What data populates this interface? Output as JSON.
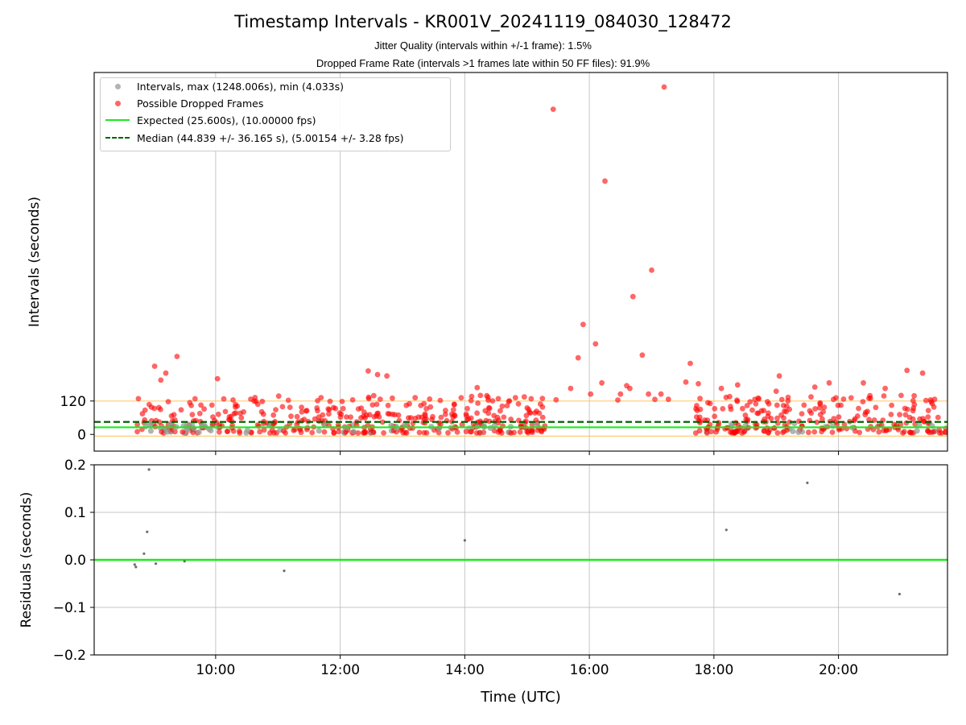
{
  "chart_data": [
    {
      "type": "scatter",
      "title": "Timestamp Intervals - KR001V_20241119_084030_128472",
      "subtitle_1": "Jitter Quality (intervals within +/-1 frame): 1.5%",
      "subtitle_2": "Dropped Frame Rate (intervals >1 frames late within 50 FF files): 91.9%",
      "ylabel": "Intervals (seconds)",
      "xlabel": "",
      "xlim": [
        8.05,
        21.75
      ],
      "ylim": [
        -60,
        1300
      ],
      "ytick_labels": [
        "0",
        "120"
      ],
      "xtick_labels": [
        "10:00",
        "12:00",
        "14:00",
        "16:00",
        "18:00",
        "20:00"
      ],
      "grid": "vertical",
      "legend_position": "upper-left",
      "legend": [
        {
          "label": "Intervals, max (1248.006s), min (4.033s)",
          "color": "#999999",
          "kind": "dot"
        },
        {
          "label": "Possible Dropped Frames",
          "color": "#ff0000",
          "kind": "dot"
        },
        {
          "label": "Expected (25.600s), (10.00000 fps)",
          "color": "#1aeb1a",
          "kind": "line"
        },
        {
          "label": "Median (44.839 +/- 36.165 s), (5.00154 +/- 3.28 fps)",
          "color": "#006400",
          "kind": "dashed"
        }
      ],
      "reference_lines": {
        "expected": 25.6,
        "median": 44.839,
        "band_upper": 120,
        "band_lower": -6
      },
      "outliers": [
        {
          "x": 9.02,
          "y": 245
        },
        {
          "x": 9.12,
          "y": 195
        },
        {
          "x": 9.2,
          "y": 220
        },
        {
          "x": 9.38,
          "y": 280
        },
        {
          "x": 10.03,
          "y": 200
        },
        {
          "x": 12.45,
          "y": 228
        },
        {
          "x": 12.6,
          "y": 215
        },
        {
          "x": 12.75,
          "y": 210
        },
        {
          "x": 14.2,
          "y": 168
        },
        {
          "x": 15.42,
          "y": 1168
        },
        {
          "x": 15.7,
          "y": 165
        },
        {
          "x": 15.82,
          "y": 275
        },
        {
          "x": 15.9,
          "y": 395
        },
        {
          "x": 16.02,
          "y": 145
        },
        {
          "x": 16.1,
          "y": 325
        },
        {
          "x": 16.2,
          "y": 185
        },
        {
          "x": 16.25,
          "y": 910
        },
        {
          "x": 16.5,
          "y": 145
        },
        {
          "x": 16.6,
          "y": 175
        },
        {
          "x": 16.65,
          "y": 165
        },
        {
          "x": 16.7,
          "y": 495
        },
        {
          "x": 16.85,
          "y": 285
        },
        {
          "x": 16.95,
          "y": 145
        },
        {
          "x": 17.0,
          "y": 590
        },
        {
          "x": 17.15,
          "y": 145
        },
        {
          "x": 17.2,
          "y": 1248
        },
        {
          "x": 17.55,
          "y": 188
        },
        {
          "x": 17.62,
          "y": 255
        },
        {
          "x": 17.75,
          "y": 182
        },
        {
          "x": 18.12,
          "y": 165
        },
        {
          "x": 18.38,
          "y": 178
        },
        {
          "x": 19.0,
          "y": 155
        },
        {
          "x": 19.05,
          "y": 210
        },
        {
          "x": 19.62,
          "y": 170
        },
        {
          "x": 19.85,
          "y": 185
        },
        {
          "x": 20.4,
          "y": 185
        },
        {
          "x": 20.75,
          "y": 165
        },
        {
          "x": 21.1,
          "y": 230
        },
        {
          "x": 21.35,
          "y": 220
        }
      ],
      "clusters": [
        {
          "x0": 8.7,
          "x1": 10.05,
          "y_lo": 5,
          "y_hi": 130,
          "count": 90,
          "gray_fraction": 0.35
        },
        {
          "x0": 10.05,
          "x1": 12.05,
          "y_lo": 5,
          "y_hi": 140,
          "count": 120,
          "gray_fraction": 0.08
        },
        {
          "x0": 12.05,
          "x1": 14.0,
          "y_lo": 5,
          "y_hi": 140,
          "count": 130,
          "gray_fraction": 0.08
        },
        {
          "x0": 14.0,
          "x1": 15.3,
          "y_lo": 5,
          "y_hi": 140,
          "count": 110,
          "gray_fraction": 0.1
        },
        {
          "x0": 15.3,
          "x1": 17.7,
          "y_lo": 120,
          "y_hi": 150,
          "count": 4,
          "gray_fraction": 0.0
        },
        {
          "x0": 17.7,
          "x1": 19.5,
          "y_lo": 5,
          "y_hi": 140,
          "count": 130,
          "gray_fraction": 0.1
        },
        {
          "x0": 19.5,
          "x1": 21.75,
          "y_lo": 5,
          "y_hi": 140,
          "count": 130,
          "gray_fraction": 0.07
        }
      ]
    },
    {
      "type": "scatter",
      "title": "",
      "xlabel": "Time (UTC)",
      "ylabel": "Residuals (seconds)",
      "xlim": [
        8.05,
        21.75
      ],
      "ylim": [
        -0.2,
        0.2
      ],
      "ytick_labels": [
        "0.2",
        "0.1",
        "0.0",
        "−0.1",
        "−0.2"
      ],
      "xtick_labels": [
        "10:00",
        "12:00",
        "14:00",
        "16:00",
        "18:00",
        "20:00"
      ],
      "grid": "both",
      "zero_line_color": "#1aeb1a",
      "points": [
        {
          "x": 8.7,
          "y": -0.01
        },
        {
          "x": 8.72,
          "y": -0.015
        },
        {
          "x": 8.85,
          "y": 0.013
        },
        {
          "x": 8.9,
          "y": 0.059
        },
        {
          "x": 8.93,
          "y": 0.19
        },
        {
          "x": 9.04,
          "y": -0.008
        },
        {
          "x": 9.5,
          "y": -0.003
        },
        {
          "x": 11.1,
          "y": -0.023
        },
        {
          "x": 14.0,
          "y": 0.041
        },
        {
          "x": 18.2,
          "y": 0.063
        },
        {
          "x": 19.5,
          "y": 0.162
        },
        {
          "x": 20.98,
          "y": -0.072
        }
      ]
    }
  ]
}
